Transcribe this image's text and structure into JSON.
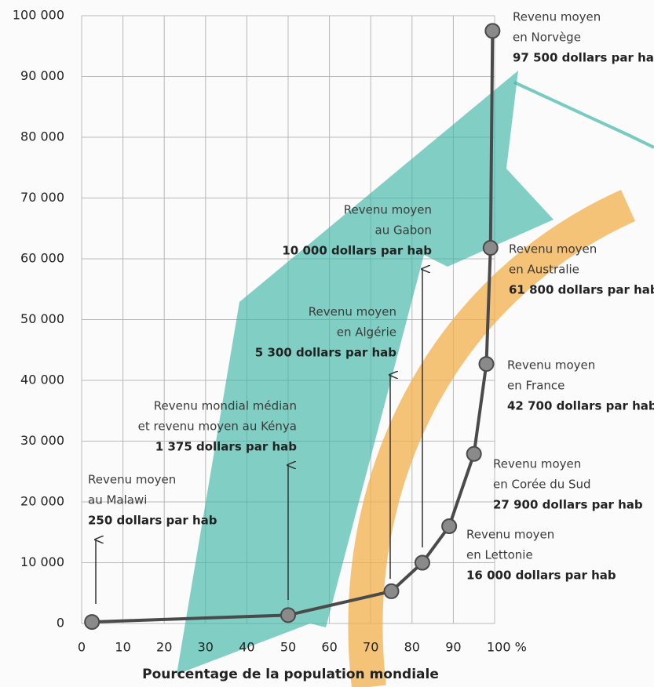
{
  "chart_data": {
    "type": "line",
    "xlabel": "Pourcentage de la population mondiale",
    "x": [
      2.5,
      50,
      75,
      82.5,
      89,
      95,
      98,
      99,
      99.5
    ],
    "values": [
      250,
      1375,
      5300,
      10000,
      16000,
      27900,
      42700,
      61800,
      97500
    ],
    "color": "#4a4a4a",
    "marker_color": "#8a8a8a",
    "xlim": [
      0,
      100
    ],
    "xticks": [
      0,
      10,
      20,
      30,
      40,
      50,
      60,
      70,
      80,
      90,
      {
        "value": 100,
        "label": "100 %"
      }
    ],
    "ylim": [
      0,
      100000
    ],
    "yticks": [
      0,
      {
        "value": 10000,
        "label": "10 000"
      },
      {
        "value": 20000,
        "label": "20 000"
      },
      {
        "value": 30000,
        "label": "30 000"
      },
      {
        "value": 40000,
        "label": "40 000"
      },
      {
        "value": 50000,
        "label": "50 000"
      },
      {
        "value": 60000,
        "label": "60 000"
      },
      {
        "value": 70000,
        "label": "70 000"
      },
      {
        "value": 80000,
        "label": "80 000"
      },
      {
        "value": 90000,
        "label": "90 000"
      },
      {
        "value": 100000,
        "label": "100 000"
      }
    ],
    "grid": true,
    "annotations": [
      [
        "Revenu moyen",
        "au Malawi",
        "250 dollars par hab"
      ],
      [
        "Revenu mondial médian",
        "et revenu moyen au Kénya",
        "1 375 dollars par hab"
      ],
      [
        "Revenu moyen",
        "en Algérie",
        "5 300 dollars par hab"
      ],
      [
        "Revenu moyen",
        "au Gabon",
        "10 000 dollars par hab"
      ],
      [
        "Revenu moyen",
        "en Lettonie",
        "16 000 dollars par hab"
      ],
      [
        "Revenu moyen",
        "en Corée du Sud",
        "27 900 dollars par hab"
      ],
      [
        "Revenu moyen",
        "en France",
        "42 700 dollars par hab"
      ],
      [
        "Revenu moyen",
        "en Australie",
        "61 800 dollars par hab"
      ],
      [
        "Revenu moyen",
        "en Norvège",
        "97 500 dollars par hab"
      ]
    ]
  }
}
